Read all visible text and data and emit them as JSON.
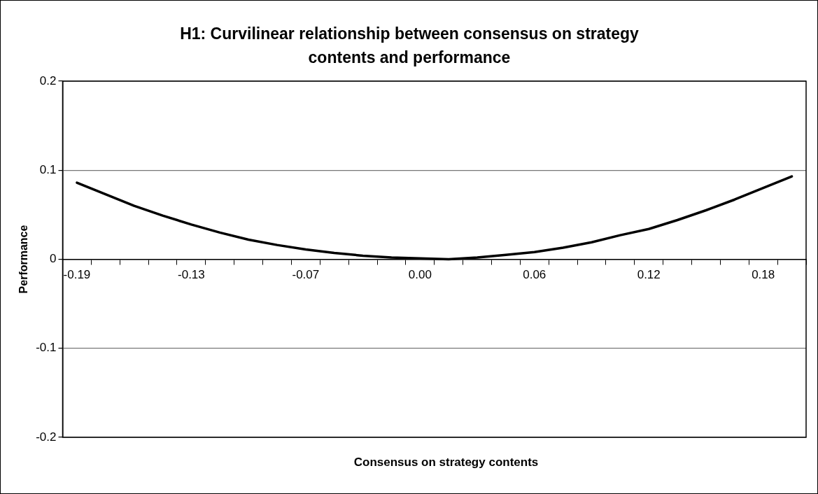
{
  "chart_data": {
    "type": "line",
    "title": "H1: Curvilinear relationship between consensus on strategy contents and performance",
    "xlabel": "Consensus on strategy contents",
    "ylabel": "Performance",
    "categories": [
      "-0.19",
      null,
      null,
      null,
      "-0.13",
      null,
      null,
      null,
      "-0.07",
      null,
      null,
      null,
      "0.00",
      null,
      null,
      null,
      "0.06",
      null,
      null,
      null,
      "0.12",
      null,
      null,
      null,
      "0.18",
      null
    ],
    "series": [
      {
        "color": "#000000",
        "values": [
          0.086,
          0.073,
          0.06,
          0.049,
          0.039,
          0.03,
          0.022,
          0.016,
          0.011,
          0.007,
          0.004,
          0.002,
          0.001,
          0.0,
          0.002,
          0.005,
          0.008,
          0.013,
          0.019,
          0.027,
          0.034,
          0.044,
          0.055,
          0.067,
          0.08,
          0.093
        ]
      }
    ],
    "ylim": [
      -0.2,
      0.2
    ],
    "yticks": [
      0.2,
      0.1,
      0,
      -0.1,
      -0.2
    ],
    "grid": "y",
    "legend": false,
    "marker": "none",
    "line_style": "solid"
  }
}
